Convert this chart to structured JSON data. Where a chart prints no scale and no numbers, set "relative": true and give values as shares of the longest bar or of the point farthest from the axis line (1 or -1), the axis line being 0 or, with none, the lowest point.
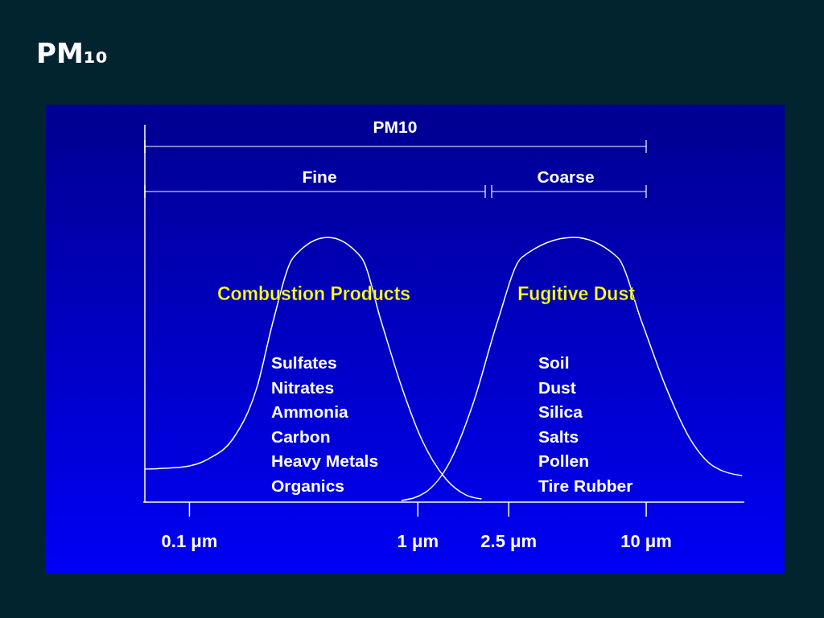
{
  "chart_data": {
    "type": "line",
    "title": "PM₁₀",
    "relative": true,
    "log": "x",
    "xlim": [
      0.063,
      27
    ],
    "xticks": [
      {
        "value": 0.1,
        "label": "0.1 μm"
      },
      {
        "value": 1,
        "label": "1 μm"
      },
      {
        "value": 2.5,
        "label": "2.5 μm"
      },
      {
        "value": 10,
        "label": "10 μm"
      }
    ],
    "series": [
      {
        "color": "#ffffff",
        "x": [
          0.064,
          0.096,
          0.122,
          0.156,
          0.199,
          0.233,
          0.286,
          0.405,
          0.568,
          0.695,
          0.851,
          1.04,
          1.33,
          1.63,
          1.91
        ],
        "values": [
          0.125,
          0.134,
          0.164,
          0.24,
          0.438,
          0.681,
          0.924,
          1,
          0.924,
          0.681,
          0.438,
          0.24,
          0.088,
          0.027,
          0.012
        ]
      },
      {
        "color": "#ffffff",
        "x": [
          0.851,
          1.08,
          1.38,
          1.76,
          2.24,
          2.86,
          4.83,
          7.53,
          9.6,
          12.2,
          15.6,
          19.9,
          26.4
        ],
        "values": [
          0.006,
          0.036,
          0.149,
          0.377,
          0.681,
          0.924,
          1,
          0.924,
          0.681,
          0.438,
          0.24,
          0.134,
          0.1
        ]
      }
    ],
    "annotations": [
      "PM10",
      "Fine",
      "Coarse",
      "Combustion Products",
      "Fugitive Dust",
      "Sulfates\nNitrates\nAmmonia\nCarbon\nHeavy Metals\nOrganics",
      "Soil\nDust\nSilica\nSalts\nPollen\nTire Rubber"
    ]
  }
}
